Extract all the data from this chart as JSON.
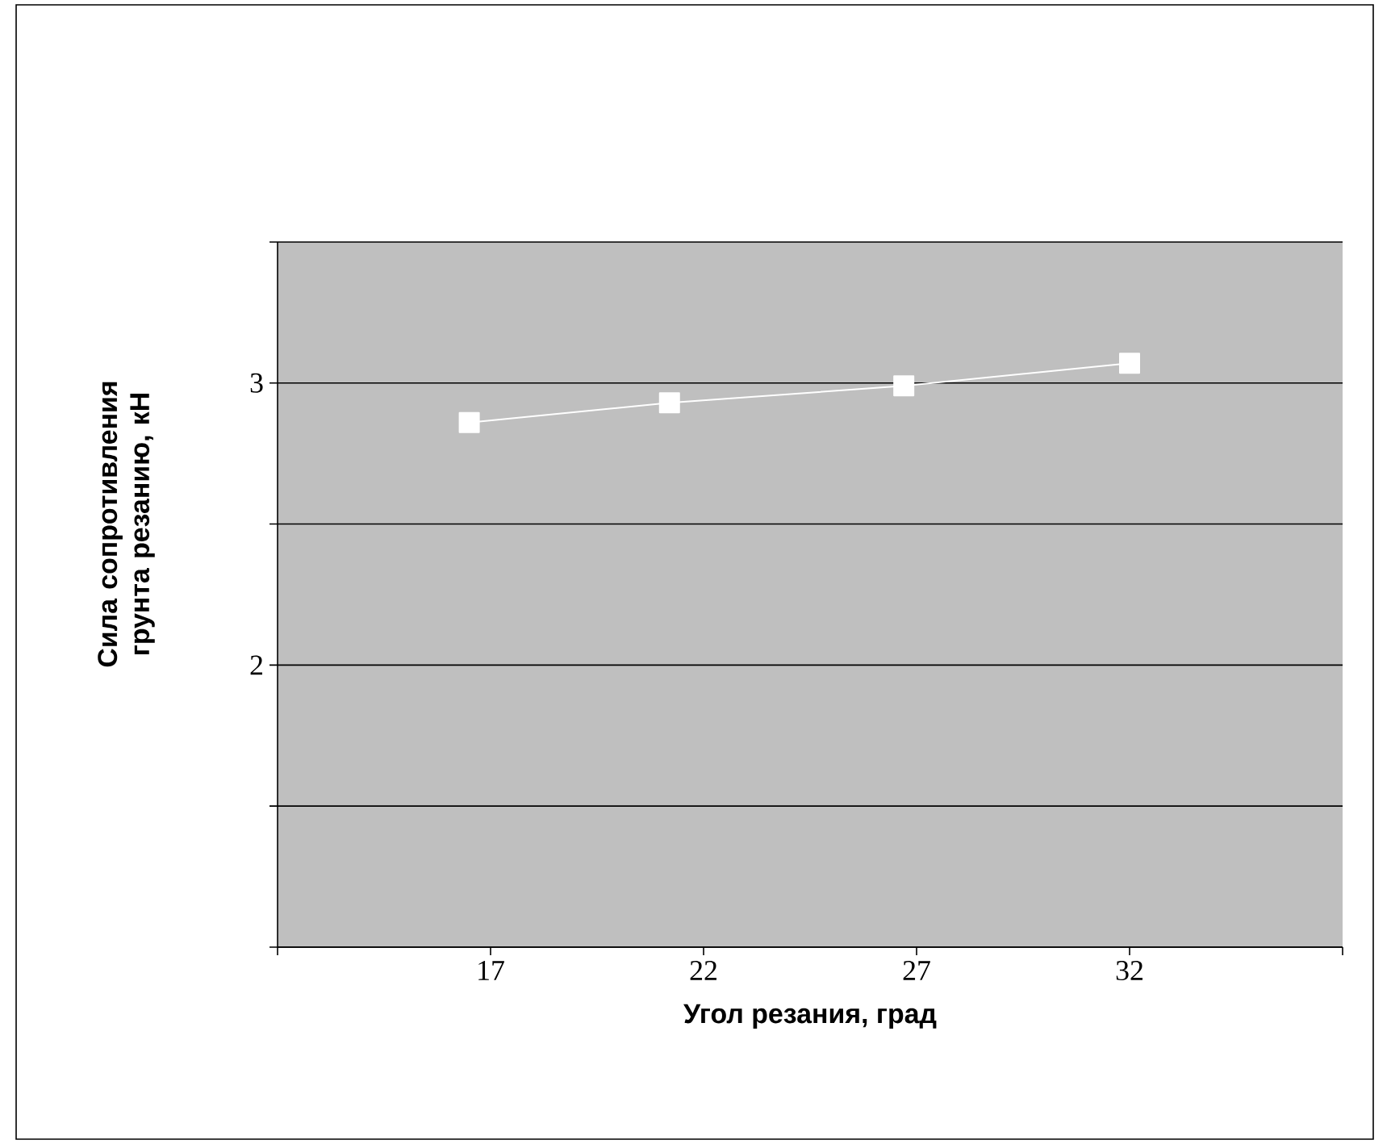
{
  "chart_data": {
    "type": "line",
    "xlabel": "Угол резания, град",
    "ylabel": "Сила сопротивления грунта резанию, кН",
    "x": [
      16.5,
      21.2,
      26.7,
      32.0
    ],
    "series": [
      {
        "color": "#ffffff",
        "values": [
          2.86,
          2.93,
          2.99,
          3.07
        ]
      }
    ],
    "xlim": [
      12,
      37
    ],
    "xticks": [
      {
        "value": 12,
        "label": null
      },
      17,
      22,
      27,
      32,
      {
        "value": 37,
        "label": null
      }
    ],
    "ylim": [
      1,
      3.5
    ],
    "yticks": [
      {
        "value": 1,
        "label": null
      },
      {
        "value": 1.5,
        "label": null
      },
      2,
      {
        "value": 2.5,
        "label": null
      },
      3,
      {
        "value": 3.5,
        "label": null
      }
    ],
    "grid": "y",
    "marker": "square",
    "line_style": "solid"
  }
}
